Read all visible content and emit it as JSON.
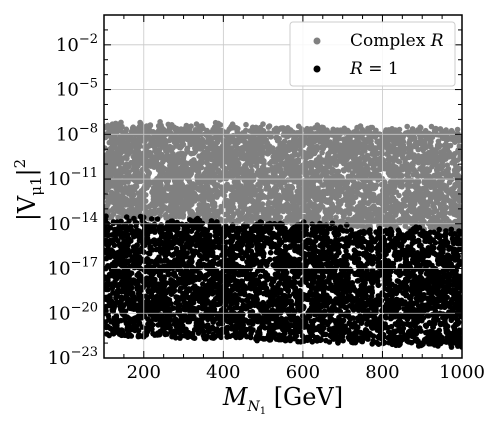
{
  "chart_data": {
    "type": "scatter",
    "title": "",
    "xlabel": "M_{N_1} [GeV]",
    "xlabel_parts": {
      "main": "M",
      "sub": "N",
      "subsub": "1",
      "unit": " [GeV]"
    },
    "ylabel": "|V_{μ1}|^2",
    "ylabel_parts": {
      "open": "|V",
      "sub": "μ1",
      "close": "|",
      "sup": "2"
    },
    "xscale": "linear",
    "yscale": "log",
    "xlim": [
      100,
      1000
    ],
    "ylim_exp": [
      -23,
      0
    ],
    "xticks": [
      200,
      400,
      600,
      800,
      1000
    ],
    "xtick_labels": [
      "200",
      "400",
      "600",
      "800",
      "1000"
    ],
    "yticks_exp": [
      -23,
      -20,
      -17,
      -14,
      -11,
      -8,
      -5,
      -2
    ],
    "ytick_base": "10",
    "ytick_labels": [
      "−23",
      "−20",
      "−17",
      "−14",
      "−11",
      "−8",
      "−5",
      "−2"
    ],
    "grid": true,
    "legend": {
      "placement": "top-right"
    },
    "series": [
      {
        "name": "Complex R",
        "name_parts": {
          "text": "Complex ",
          "var": "R"
        },
        "color": "#808080",
        "marker": "circle",
        "region": {
          "x": [
            100,
            1000
          ],
          "upper_log10": {
            "at_100": -7.3,
            "at_1000": -7.7
          },
          "lower_log10": {
            "at_100": -13.6,
            "at_1000": -14.5
          }
        }
      },
      {
        "name": "R = 1",
        "name_parts": {
          "var": "R",
          "rest": " = 1"
        },
        "color": "#000000",
        "marker": "circle",
        "region": {
          "x": [
            100,
            1000
          ],
          "upper_log10": {
            "at_100": -13.6,
            "at_1000": -14.5
          },
          "lower_log10": {
            "at_100": -21.5,
            "at_1000": -22.3
          }
        }
      }
    ]
  }
}
